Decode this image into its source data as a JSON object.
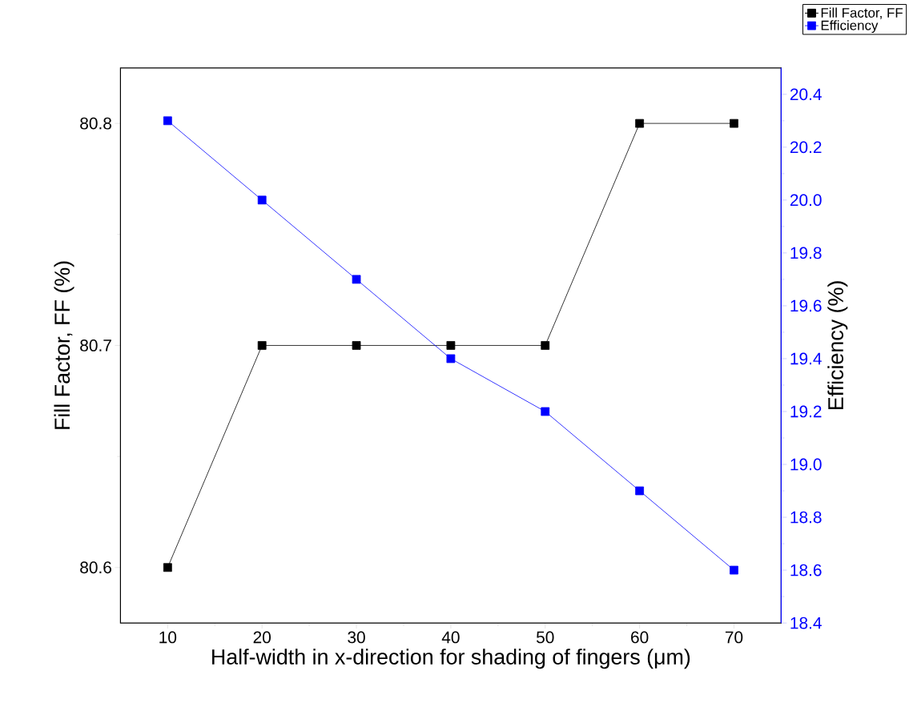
{
  "chart_data": {
    "type": "line",
    "xlabel": "Half-width in x-direction for shading of fingers (μm)",
    "ylabel": "Fill Factor, FF (%)",
    "y2label": "Efficiency (%)",
    "x": [
      10,
      20,
      30,
      40,
      50,
      60,
      70
    ],
    "series": [
      {
        "name": "Fill Factor, FF",
        "color": "#000000",
        "values": [
          80.6,
          80.7,
          80.7,
          80.7,
          80.7,
          80.8,
          80.8
        ]
      },
      {
        "name": "Efficiency",
        "color": "#0000ff",
        "axis": "y2",
        "values": [
          20.3,
          20.0,
          19.7,
          19.4,
          19.2,
          18.9,
          18.6
        ]
      }
    ],
    "xlim": [
      5,
      75
    ],
    "xticks": [
      10,
      20,
      30,
      40,
      50,
      60,
      70
    ],
    "ylim": [
      80.575,
      80.825
    ],
    "yticks": [
      80.6,
      80.7,
      80.8
    ],
    "y2lim": [
      18.4,
      20.5
    ],
    "y2ticks": [
      18.4,
      18.6,
      18.8,
      {
        "value": 19,
        "label": "19.0"
      },
      19.2,
      19.4,
      19.6,
      19.8,
      {
        "value": 20,
        "label": "20.0"
      },
      20.2,
      20.4
    ],
    "marker": "square",
    "line_style": "solid",
    "grid": false,
    "legend": "top right"
  }
}
